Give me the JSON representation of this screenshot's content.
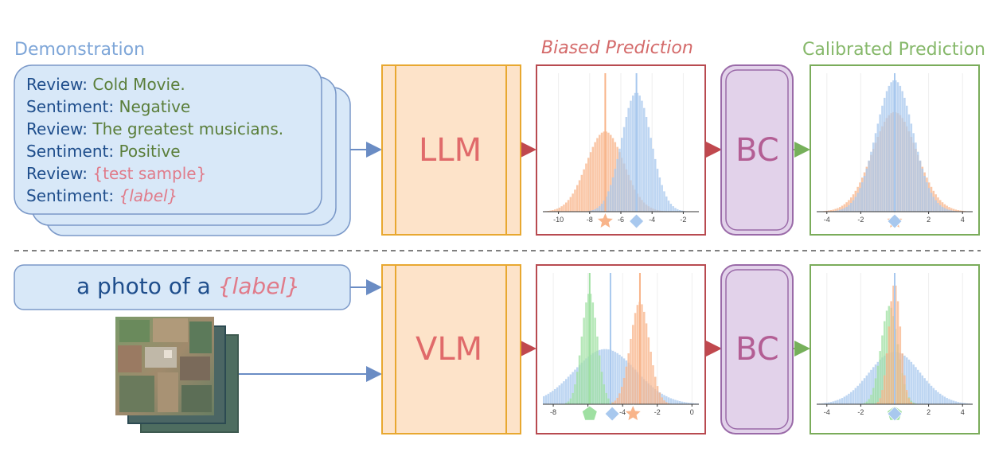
{
  "headings": {
    "demonstration": "Demonstration",
    "biased": "Biased Prediction",
    "calibrated": "Calibrated Prediction"
  },
  "demo": [
    {
      "key": "Review:",
      "value": "Cold Movie.",
      "style": "v"
    },
    {
      "key": "Sentiment:",
      "value": "Negative",
      "style": "v"
    },
    {
      "key": "Review:",
      "value": "The greatest musicians.",
      "style": "v"
    },
    {
      "key": "Sentiment:",
      "value": "Positive",
      "style": "v"
    },
    {
      "key": "Review:",
      "value": "{test sample}",
      "style": "p"
    },
    {
      "key": "Sentiment:",
      "value": "{label}",
      "style": "pi"
    }
  ],
  "prompt": {
    "prefix": "a photo of a",
    "placeholder": "{label}"
  },
  "models": {
    "llm": "LLM",
    "vlm": "VLM",
    "bc": "BC"
  },
  "colors": {
    "blue": "#a8c8ee",
    "orange": "#f8b48a",
    "green": "#9fe0a2",
    "red_frame": "#b84a50",
    "green_frame": "#7aac5a",
    "model_fill": "#fde3c9",
    "model_stroke": "#e8a830",
    "bc_fill": "#e2d2ea",
    "bc_stroke": "#9a6aa8",
    "demo_fill": "#d8e8f8",
    "demo_stroke": "#7a98c8"
  },
  "chart_data": [
    {
      "id": "llm-biased",
      "type": "histogram",
      "xticks": [
        "-10",
        "-8",
        "-6",
        "-4",
        "-2"
      ],
      "xlim": [
        -11,
        -1
      ],
      "series": [
        {
          "color": "orange",
          "mean": -7.0,
          "sd": 1.2,
          "peak": 0.58
        },
        {
          "color": "blue",
          "mean": -5.0,
          "sd": 0.95,
          "peak": 0.86
        }
      ],
      "vlines": [
        {
          "x": -7.0,
          "color": "orange"
        },
        {
          "x": -5.0,
          "color": "blue"
        }
      ],
      "markers": [
        {
          "shape": "star",
          "x": -7.0,
          "color": "orange"
        },
        {
          "shape": "diamond",
          "x": -5.0,
          "color": "blue"
        }
      ]
    },
    {
      "id": "llm-calibrated",
      "type": "histogram",
      "xticks": [
        "-4",
        "-2",
        "0",
        "2",
        "4"
      ],
      "xlim": [
        -4.6,
        4.6
      ],
      "series": [
        {
          "color": "orange",
          "mean": 0,
          "sd": 1.3,
          "peak": 0.72
        },
        {
          "color": "blue",
          "mean": 0,
          "sd": 1.1,
          "peak": 0.95
        }
      ],
      "vlines": [
        {
          "x": 0,
          "color": "orange"
        },
        {
          "x": 0,
          "color": "blue"
        }
      ],
      "markers": [
        {
          "shape": "star",
          "x": 0,
          "color": "orange"
        },
        {
          "shape": "diamond",
          "x": 0,
          "color": "blue"
        }
      ]
    },
    {
      "id": "vlm-biased",
      "type": "histogram",
      "xticks": [
        "-8",
        "-6",
        "-4",
        "-2",
        "0"
      ],
      "xlim": [
        -8.6,
        0.4
      ],
      "series": [
        {
          "color": "blue",
          "mean": -5.0,
          "sd": 1.8,
          "peak": 0.42
        },
        {
          "color": "green",
          "mean": -5.9,
          "sd": 0.45,
          "peak": 0.85
        },
        {
          "color": "orange",
          "mean": -3.0,
          "sd": 0.55,
          "peak": 0.78
        }
      ],
      "vlines": [
        {
          "x": -5.9,
          "color": "green"
        },
        {
          "x": -4.7,
          "color": "blue"
        },
        {
          "x": -3.0,
          "color": "orange"
        }
      ],
      "markers": [
        {
          "shape": "pentagon",
          "x": -5.9,
          "color": "green"
        },
        {
          "shape": "diamond",
          "x": -4.6,
          "color": "blue"
        },
        {
          "shape": "star",
          "x": -3.4,
          "color": "orange"
        }
      ]
    },
    {
      "id": "vlm-calibrated",
      "type": "histogram",
      "xticks": [
        "-4",
        "-2",
        "0",
        "2",
        "4"
      ],
      "xlim": [
        -4.6,
        4.6
      ],
      "series": [
        {
          "color": "blue",
          "mean": 0,
          "sd": 1.5,
          "peak": 0.4
        },
        {
          "color": "green",
          "mean": -0.3,
          "sd": 0.5,
          "peak": 0.75
        },
        {
          "color": "orange",
          "mean": 0,
          "sd": 0.35,
          "peak": 0.92
        }
      ],
      "vlines": [
        {
          "x": 0,
          "color": "orange"
        },
        {
          "x": 0,
          "color": "blue"
        }
      ],
      "markers": [
        {
          "shape": "star",
          "x": 0,
          "color": "orange"
        },
        {
          "shape": "pentagon",
          "x": 0,
          "color": "green"
        },
        {
          "shape": "diamond",
          "x": 0,
          "color": "blue"
        }
      ]
    }
  ]
}
